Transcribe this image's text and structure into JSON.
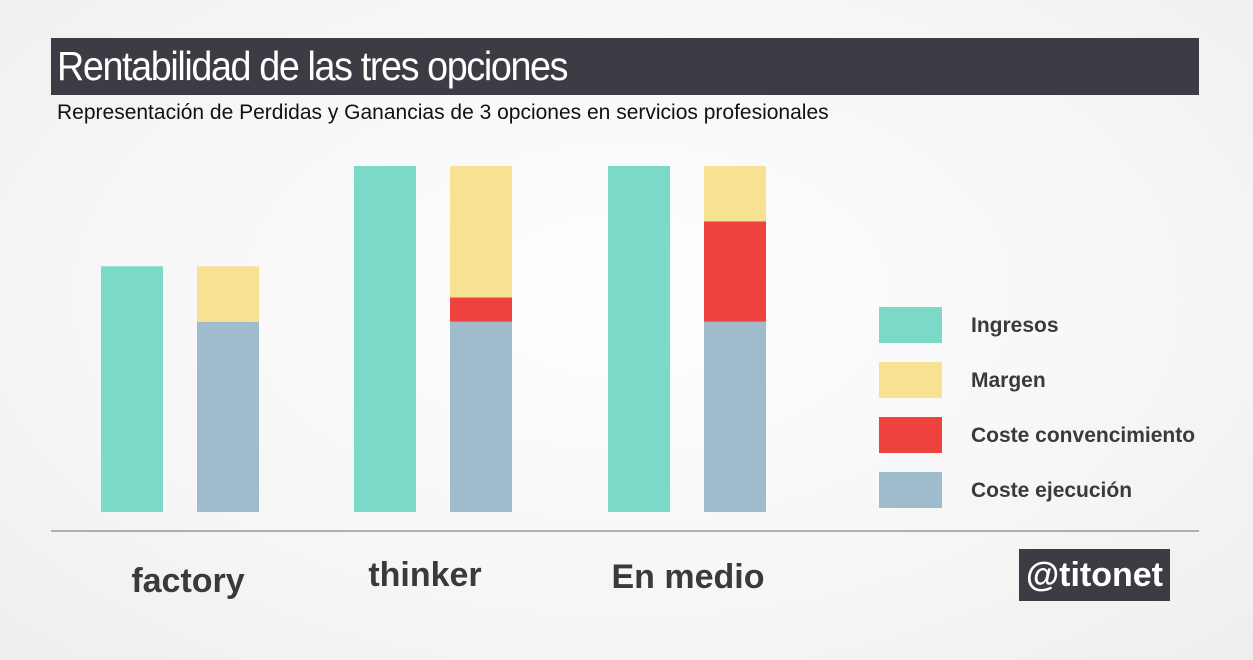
{
  "title": "Rentabilidad de las tres opciones",
  "subtitle": "Representación de Perdidas y Ganancias de 3 opciones en servicios profesionales",
  "handle": "@titonet",
  "colors": {
    "ingresos": "#7ad9c7",
    "margen": "#f7e293",
    "coste_convencimiento": "#ee433d",
    "coste_ejecucion": "#9fbccd",
    "axis": "#5b6b7d",
    "title_bg": "#3d3c44"
  },
  "chart_data": {
    "type": "bar",
    "stacked": true,
    "categories": [
      "factory",
      "thinker",
      "En medio"
    ],
    "ylim": [
      0,
      100
    ],
    "grid": false,
    "legend_position": "right",
    "series": [
      {
        "name": "Ingresos",
        "stack": "ingresos",
        "color_key": "ingresos",
        "values": [
          71,
          100,
          100
        ]
      },
      {
        "name": "Coste ejecución",
        "stack": "costes",
        "color_key": "coste_ejecucion",
        "values": [
          55,
          55,
          55
        ]
      },
      {
        "name": "Coste convencimiento",
        "stack": "costes",
        "color_key": "coste_convencimiento",
        "values": [
          0,
          7,
          29
        ]
      },
      {
        "name": "Margen",
        "stack": "costes",
        "color_key": "margen",
        "values": [
          16,
          38,
          16
        ]
      }
    ],
    "legend": [
      {
        "label": "Ingresos",
        "color_key": "ingresos"
      },
      {
        "label": "Margen",
        "color_key": "margen"
      },
      {
        "label": "Coste convencimiento",
        "color_key": "coste_convencimiento"
      },
      {
        "label": "Coste ejecución",
        "color_key": "coste_ejecucion"
      }
    ]
  }
}
